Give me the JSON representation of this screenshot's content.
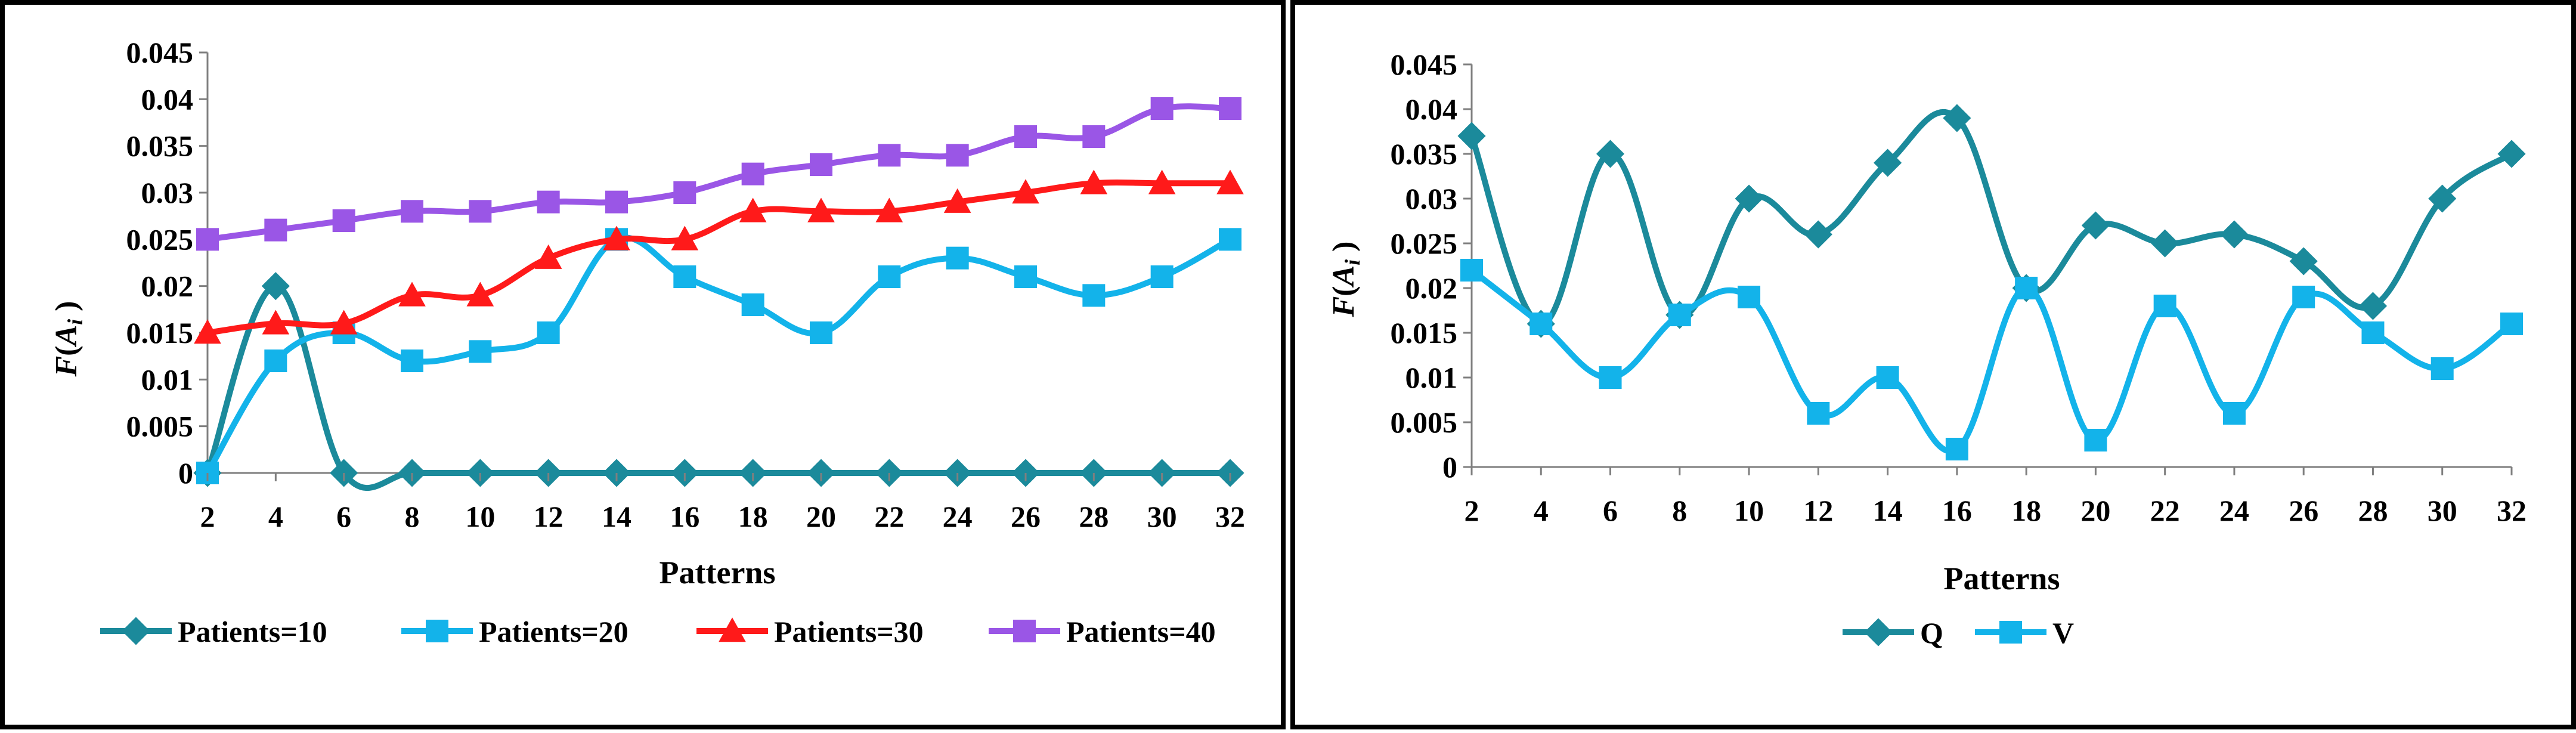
{
  "colors": {
    "teal": "#1B8A9B",
    "cyan": "#13B3EA",
    "red": "#FF1A1A",
    "purple": "#9A56E6",
    "axis": "#7F7F7F"
  },
  "chart_data": [
    {
      "type": "line",
      "smooth": true,
      "categories": [
        "2",
        "4",
        "6",
        "8",
        "10",
        "12",
        "14",
        "16",
        "18",
        "20",
        "22",
        "24",
        "26",
        "28",
        "30",
        "32"
      ],
      "ylim": [
        0,
        0.045
      ],
      "yticks": [
        "0",
        "0.005",
        "0.01",
        "0.015",
        "0.02",
        "0.025",
        "0.03",
        "0.035",
        "0.04",
        "0.045"
      ],
      "xlabel": "Patterns",
      "ylabel_main": "F",
      "ylabel_paren_open": "(",
      "ylabel_var": "A",
      "ylabel_sub": "i",
      "ylabel_paren_close": " )",
      "legend_position": "bottom",
      "series": [
        {
          "name": "Patients=10",
          "marker": "diamond",
          "color": "#1B8A9B",
          "values": [
            0,
            0.02,
            0,
            0,
            0,
            0,
            0,
            0,
            0,
            0,
            0,
            0,
            0,
            0,
            0,
            0
          ]
        },
        {
          "name": "Patients=20",
          "marker": "square",
          "color": "#13B3EA",
          "values": [
            0,
            0.012,
            0.015,
            0.012,
            0.013,
            0.015,
            0.025,
            0.021,
            0.018,
            0.015,
            0.021,
            0.023,
            0.021,
            0.019,
            0.021,
            0.025
          ]
        },
        {
          "name": "Patients=30",
          "marker": "triangle",
          "color": "#FF1A1A",
          "values": [
            0.015,
            0.016,
            0.016,
            0.019,
            0.019,
            0.023,
            0.025,
            0.025,
            0.028,
            0.028,
            0.028,
            0.029,
            0.03,
            0.031,
            0.031,
            0.031
          ]
        },
        {
          "name": "Patients=40",
          "marker": "square",
          "color": "#9A56E6",
          "values": [
            0.025,
            0.026,
            0.027,
            0.028,
            0.028,
            0.029,
            0.029,
            0.03,
            0.032,
            0.033,
            0.034,
            0.034,
            0.036,
            0.036,
            0.039,
            0.039
          ]
        }
      ]
    },
    {
      "type": "line",
      "smooth": true,
      "categories": [
        "2",
        "4",
        "6",
        "8",
        "10",
        "12",
        "14",
        "16",
        "18",
        "20",
        "22",
        "24",
        "26",
        "28",
        "30",
        "32"
      ],
      "ylim": [
        0,
        0.045
      ],
      "yticks": [
        "0",
        "0.005",
        "0.01",
        "0.015",
        "0.02",
        "0.025",
        "0.03",
        "0.035",
        "0.04",
        "0.045"
      ],
      "xlabel": "Patterns",
      "ylabel_main": "F",
      "ylabel_paren_open": "(",
      "ylabel_var": "A",
      "ylabel_sub": "i",
      "ylabel_paren_close": " )",
      "legend_position": "bottom",
      "series": [
        {
          "name": "Q",
          "marker": "diamond",
          "color": "#1B8A9B",
          "values": [
            0.037,
            0.016,
            0.035,
            0.017,
            0.03,
            0.026,
            0.034,
            0.039,
            0.02,
            0.027,
            0.025,
            0.026,
            0.023,
            0.018,
            0.03,
            0.035
          ]
        },
        {
          "name": "V",
          "marker": "square",
          "color": "#13B3EA",
          "values": [
            0.022,
            0.016,
            0.01,
            0.017,
            0.019,
            0.006,
            0.01,
            0.002,
            0.02,
            0.003,
            0.018,
            0.006,
            0.019,
            0.015,
            0.011,
            0.016
          ]
        }
      ]
    }
  ]
}
